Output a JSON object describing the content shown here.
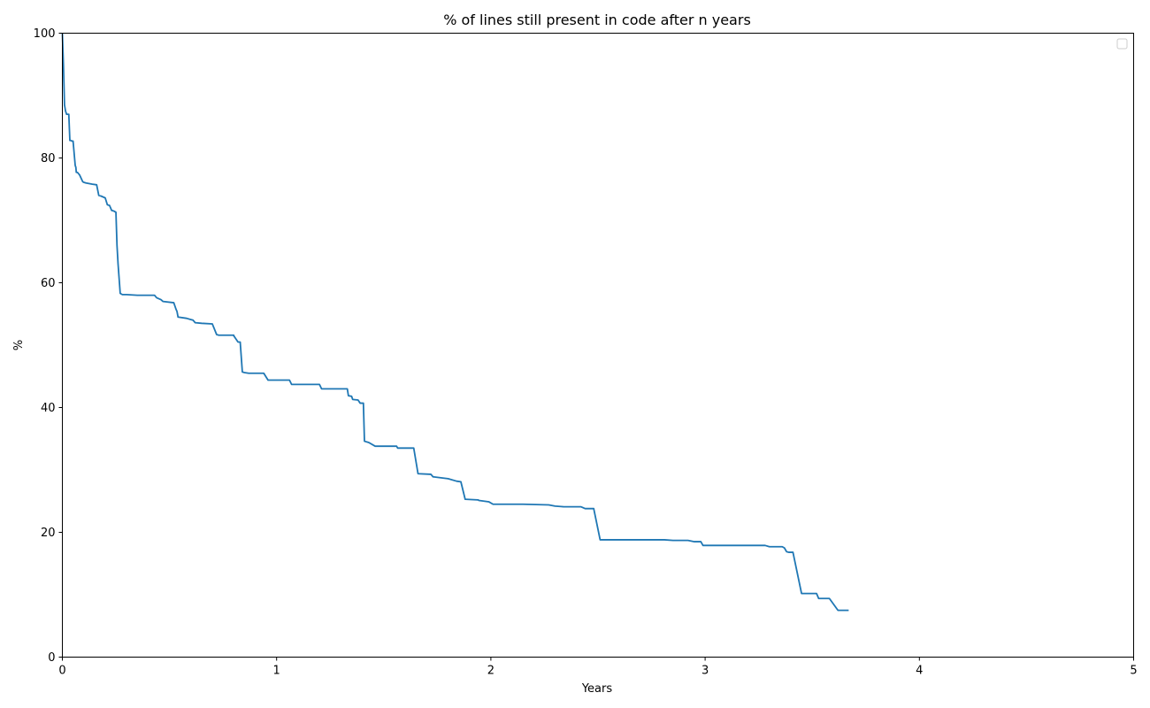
{
  "chart_data": {
    "type": "line",
    "title": "% of lines still present in code after n years",
    "xlabel": "Years",
    "ylabel": "%",
    "xlim": [
      0,
      5
    ],
    "ylim": [
      0,
      100
    ],
    "xticks": [
      0,
      1,
      2,
      3,
      4,
      5
    ],
    "yticks": [
      0,
      20,
      40,
      60,
      80,
      100
    ],
    "grid": false,
    "legend": "top-right (empty)",
    "series": [
      {
        "color": "#1f77b4",
        "x": [
          0.0,
          0.005,
          0.01,
          0.015,
          0.02,
          0.03,
          0.035,
          0.04,
          0.045,
          0.05,
          0.06,
          0.063,
          0.065,
          0.07,
          0.08,
          0.095,
          0.1,
          0.11,
          0.14,
          0.16,
          0.17,
          0.18,
          0.2,
          0.21,
          0.22,
          0.23,
          0.24,
          0.25,
          0.255,
          0.26,
          0.27,
          0.28,
          0.3,
          0.35,
          0.43,
          0.44,
          0.46,
          0.47,
          0.52,
          0.53,
          0.535,
          0.54,
          0.58,
          0.6,
          0.61,
          0.62,
          0.65,
          0.7,
          0.72,
          0.73,
          0.8,
          0.8,
          0.82,
          0.83,
          0.84,
          0.85,
          0.87,
          0.94,
          0.96,
          0.97,
          1.06,
          1.07,
          1.2,
          1.21,
          1.33,
          1.335,
          1.35,
          1.355,
          1.38,
          1.39,
          1.405,
          1.41,
          1.43,
          1.46,
          1.56,
          1.565,
          1.64,
          1.66,
          1.72,
          1.73,
          1.8,
          1.84,
          1.86,
          1.88,
          1.94,
          1.945,
          1.99,
          2.01,
          2.02,
          2.15,
          2.27,
          2.3,
          2.34,
          2.42,
          2.44,
          2.48,
          2.51,
          2.62,
          2.81,
          2.85,
          2.92,
          2.95,
          2.98,
          2.99,
          3.0,
          3.28,
          3.3,
          3.36,
          3.37,
          3.38,
          3.39,
          3.41,
          3.45,
          3.52,
          3.53,
          3.58,
          3.62,
          3.67
        ],
        "values": [
          100,
          95,
          88.5,
          87.5,
          87,
          87,
          82.8,
          82.8,
          82.7,
          82.7,
          78.8,
          78.5,
          77.7,
          77.7,
          77.3,
          76.2,
          76.1,
          76.0,
          75.8,
          75.7,
          74.0,
          73.9,
          73.6,
          72.5,
          72.4,
          71.6,
          71.5,
          71.3,
          66,
          63,
          58.3,
          58.1,
          58.1,
          58.0,
          58.0,
          57.6,
          57.3,
          57.0,
          56.8,
          55.8,
          55.4,
          54.5,
          54.3,
          54.1,
          54.0,
          53.6,
          53.5,
          53.4,
          51.7,
          51.6,
          51.6,
          51.5,
          50.5,
          50.5,
          45.7,
          45.6,
          45.5,
          45.5,
          44.4,
          44.4,
          44.4,
          43.7,
          43.7,
          43.0,
          43.0,
          41.9,
          41.8,
          41.3,
          41.2,
          40.7,
          40.7,
          34.6,
          34.4,
          33.8,
          33.8,
          33.5,
          33.5,
          29.4,
          29.3,
          28.9,
          28.6,
          28.2,
          28.1,
          25.3,
          25.2,
          25.1,
          24.9,
          24.5,
          24.5,
          24.5,
          24.4,
          24.2,
          24.1,
          24.1,
          23.8,
          23.8,
          18.8,
          18.8,
          18.8,
          18.7,
          18.7,
          18.5,
          18.5,
          17.9,
          17.9,
          17.9,
          17.7,
          17.7,
          17.5,
          16.9,
          16.8,
          16.8,
          10.2,
          10.2,
          9.4,
          9.4,
          7.5,
          7.5
        ]
      }
    ]
  }
}
